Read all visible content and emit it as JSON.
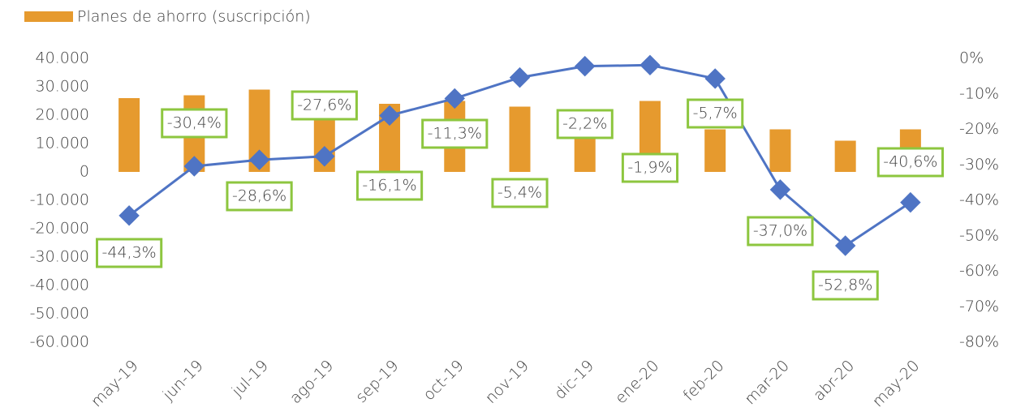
{
  "chart_data": {
    "type": "bar-line",
    "legend": "Planes de ahorro (suscripción)",
    "categories": [
      "may-19",
      "jun-19",
      "jul-19",
      "ago-19",
      "sep-19",
      "oct-19",
      "nov-19",
      "dic-19",
      "ene-20",
      "feb-20",
      "mar-20",
      "abr-20",
      "may-20"
    ],
    "series": [
      {
        "name": "Planes de ahorro (suscripción)",
        "type": "bar",
        "color": "#e69a2e",
        "values": [
          26000,
          27000,
          29000,
          19000,
          24000,
          25000,
          23000,
          12000,
          25000,
          15000,
          15000,
          11000,
          15000
        ]
      },
      {
        "type": "line",
        "axis": "y2",
        "color": "#4f74c4",
        "label_border": "#8dc63f",
        "values": [
          -44.3,
          -30.4,
          -28.6,
          -27.6,
          -16.1,
          -11.3,
          -5.4,
          -2.2,
          -1.9,
          -5.7,
          -37.0,
          -52.8,
          -40.6
        ],
        "value_labels": [
          "-44,3%",
          "-30,4%",
          "-28,6%",
          "-27,6%",
          "-16,1%",
          "-11,3%",
          "-5,4%",
          "-2,2%",
          "-1,9%",
          "-5,7%",
          "-37,0%",
          "-52,8%",
          "-40,6%"
        ]
      }
    ],
    "ylim": [
      -60000,
      40000
    ],
    "yticks": [
      {
        "value": 40000,
        "label": "40.000"
      },
      {
        "value": 30000,
        "label": "30.000"
      },
      {
        "value": 20000,
        "label": "20.000"
      },
      {
        "value": 10000,
        "label": "10.000"
      },
      0,
      {
        "value": -10000,
        "label": "-10.000"
      },
      {
        "value": -20000,
        "label": "-20.000"
      },
      {
        "value": -30000,
        "label": "-30.000"
      },
      {
        "value": -40000,
        "label": "-40.000"
      },
      {
        "value": -50000,
        "label": "-50.000"
      },
      {
        "value": -60000,
        "label": "-60.000"
      }
    ],
    "y2lim": [
      -80,
      0
    ],
    "y2ticks": [
      {
        "value": 0,
        "label": "0%"
      },
      {
        "value": -10,
        "label": "-10%"
      },
      {
        "value": -20,
        "label": "-20%"
      },
      {
        "value": -30,
        "label": "-30%"
      },
      {
        "value": -40,
        "label": "-40%"
      },
      {
        "value": -50,
        "label": "-50%"
      },
      {
        "value": -60,
        "label": "-60%"
      },
      {
        "value": -70,
        "label": "-70%"
      },
      {
        "value": -80,
        "label": "-80%"
      }
    ]
  }
}
